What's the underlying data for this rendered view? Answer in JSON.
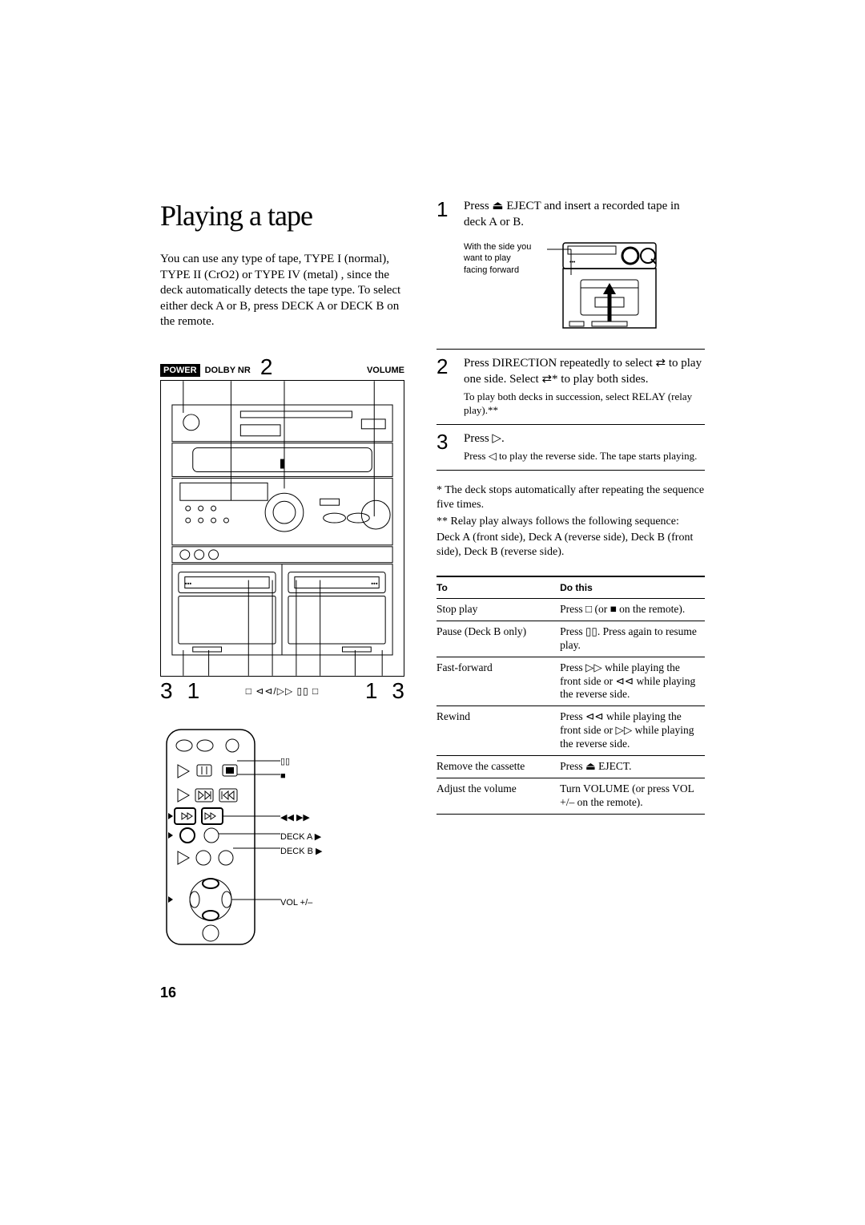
{
  "page_number": "16",
  "title": "Playing a tape",
  "intro": "You can use any type of tape, TYPE I (normal), TYPE II (CrO2) or TYPE IV (metal) , since the deck automatically detects the tape type.  To select either deck A or B, press DECK A or DECK B on the remote.",
  "labels": {
    "power": "POWER",
    "dolby": "DOLBY NR",
    "two": "2",
    "volume": "VOLUME"
  },
  "bottom_nums": {
    "l1": "3",
    "l2": "1",
    "r1": "1",
    "r2": "3"
  },
  "bottom_symbols": "□   ⊲⊲/▷▷   ▯▯   □",
  "remote_labels": {
    "pause": "▯▯",
    "stop": "■",
    "rewff": "◀◀ ▶▶",
    "deckA": "DECK A ▶",
    "deckB": "DECK B ▶",
    "vol": "VOL +/–"
  },
  "steps": [
    {
      "num": "1",
      "body": "Press ⏏ EJECT and insert a recorded tape in deck A or B."
    },
    {
      "num": "2",
      "body": "Press DIRECTION repeatedly to select ⇄ to play one side.  Select ⇄* to play both sides.",
      "sub": "To play both decks in succession, select RELAY (relay play).**"
    },
    {
      "num": "3",
      "body": "Press ▷.",
      "sub": " Press ◁ to play the reverse side.  The tape starts playing."
    }
  ],
  "eject_caption": "With the side you want to play facing forward",
  "footnotes": [
    "*  The deck stops automatically after repeating the sequence five times.",
    "** Relay play always follows the following sequence:",
    "Deck A (front side), Deck A (reverse side), Deck B (front side), Deck B (reverse side)."
  ],
  "table": {
    "headers": [
      "To",
      "Do this"
    ],
    "rows": [
      [
        "Stop play",
        "Press □ (or ■ on the remote)."
      ],
      [
        "Pause (Deck B only)",
        "Press ▯▯.  Press again to resume play."
      ],
      [
        "Fast-forward",
        "Press ▷▷ while playing the front side or ⊲⊲ while playing the reverse side."
      ],
      [
        "Rewind",
        "Press ⊲⊲ while playing the front side or ▷▷ while playing the reverse side."
      ],
      [
        "Remove the cassette",
        "Press ⏏ EJECT."
      ],
      [
        "Adjust the volume",
        "Turn VOLUME (or press VOL +/– on the remote)."
      ]
    ]
  },
  "colors": {
    "text": "#000000",
    "bg": "#ffffff"
  }
}
